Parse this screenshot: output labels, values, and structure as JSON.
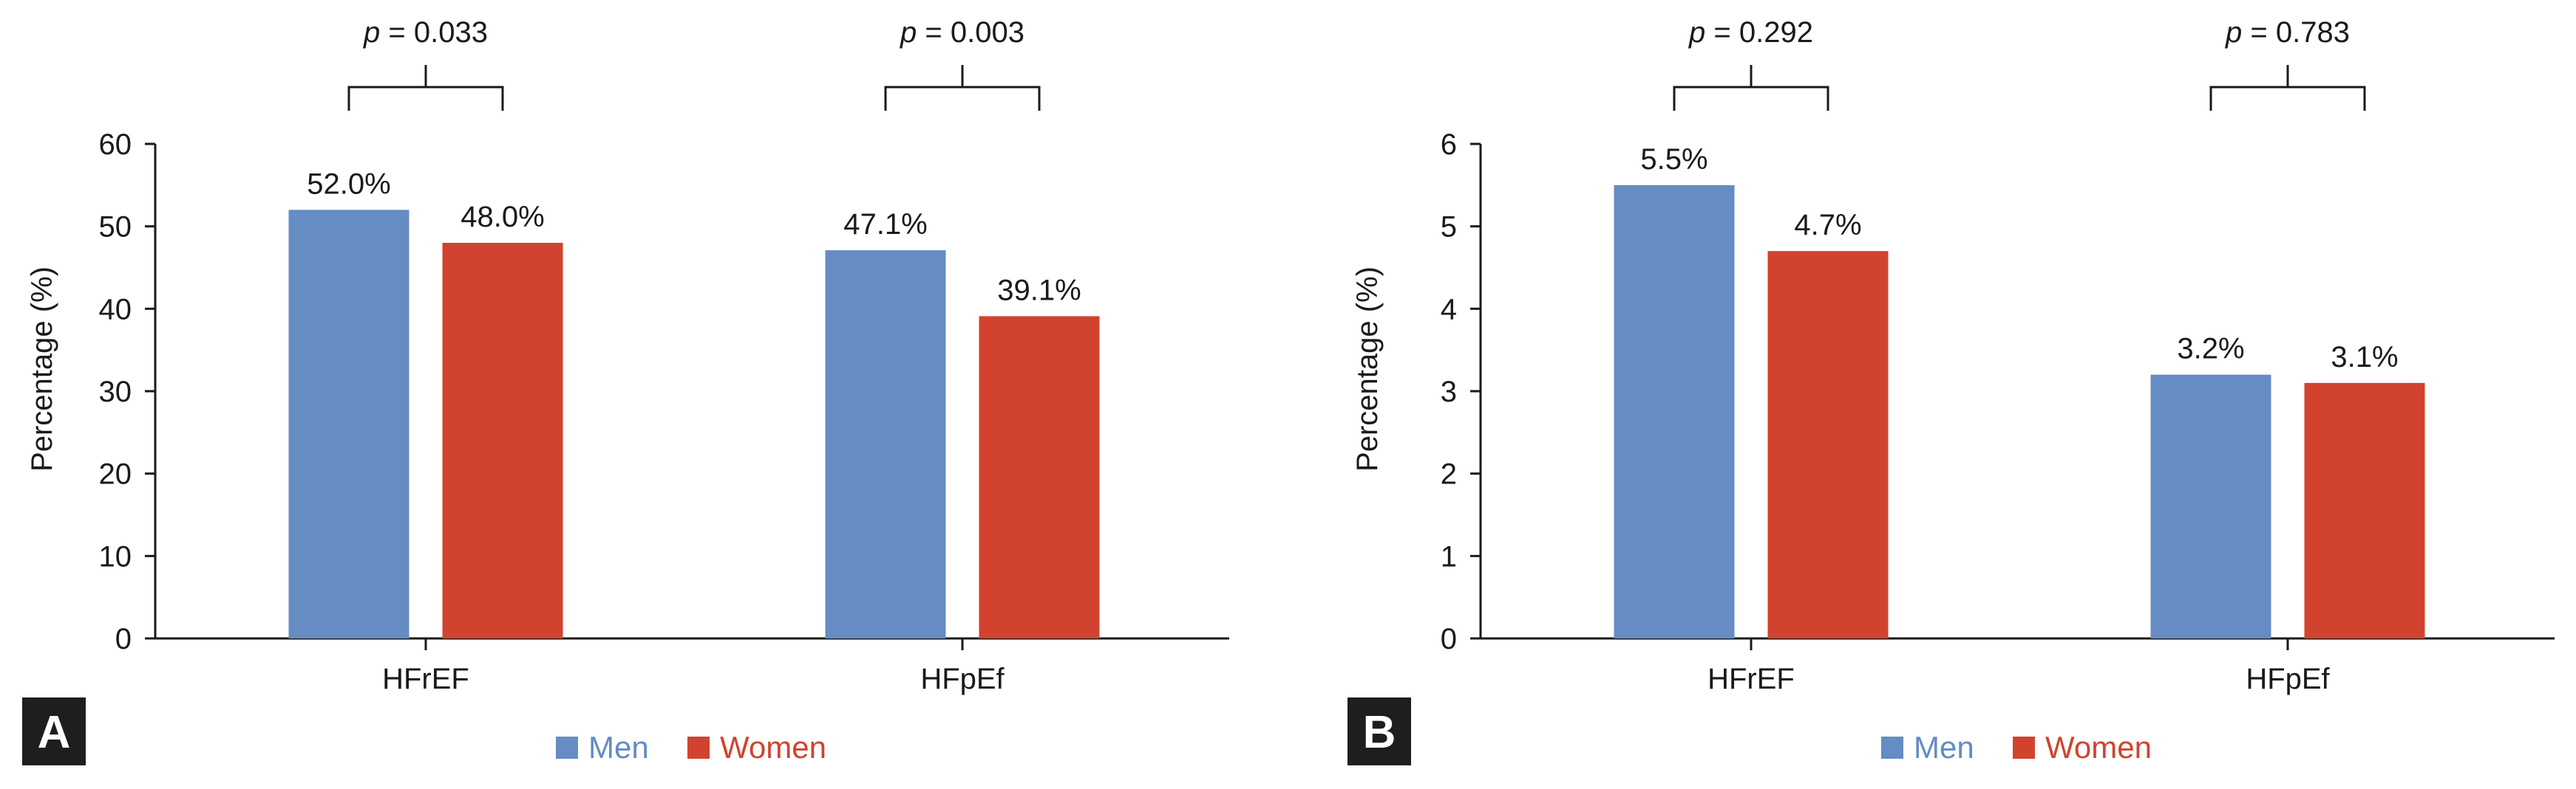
{
  "colors": {
    "men": "#658cc3",
    "women": "#d1432f",
    "panel_tag_bg": "#1e1e1e"
  },
  "chart_data": [
    {
      "type": "bar",
      "panel_label": "A",
      "categories": [
        "HFrEF",
        "HFpEf"
      ],
      "series": [
        {
          "name": "Men",
          "values": [
            52.0,
            47.1
          ],
          "labels": [
            "52.0%",
            "47.1%"
          ]
        },
        {
          "name": "Women",
          "values": [
            48.0,
            39.1
          ],
          "labels": [
            "48.0%",
            "39.1%"
          ]
        }
      ],
      "ylabel": "Percentage (%)",
      "ylim": [
        0,
        60
      ],
      "yticks": [
        0,
        10,
        20,
        30,
        40,
        50,
        60
      ],
      "annotations": [
        {
          "p": "p",
          "text": " = 0.033"
        },
        {
          "p": "p",
          "text": " = 0.003"
        }
      ],
      "legend": [
        "Men",
        "Women"
      ],
      "legend_position": "bottom-center",
      "grid": false
    },
    {
      "type": "bar",
      "panel_label": "B",
      "categories": [
        "HFrEF",
        "HFpEf"
      ],
      "series": [
        {
          "name": "Men",
          "values": [
            5.5,
            3.2
          ],
          "labels": [
            "5.5%",
            "3.2%"
          ]
        },
        {
          "name": "Women",
          "values": [
            4.7,
            3.1
          ],
          "labels": [
            "4.7%",
            "3.1%"
          ]
        }
      ],
      "ylabel": "Percentage (%)",
      "ylim": [
        0,
        6
      ],
      "yticks": [
        0,
        1,
        2,
        3,
        4,
        5,
        6
      ],
      "annotations": [
        {
          "p": "p",
          "text": " = 0.292"
        },
        {
          "p": "p",
          "text": " = 0.783"
        }
      ],
      "legend": [
        "Men",
        "Women"
      ],
      "legend_position": "bottom-center",
      "grid": false
    }
  ]
}
